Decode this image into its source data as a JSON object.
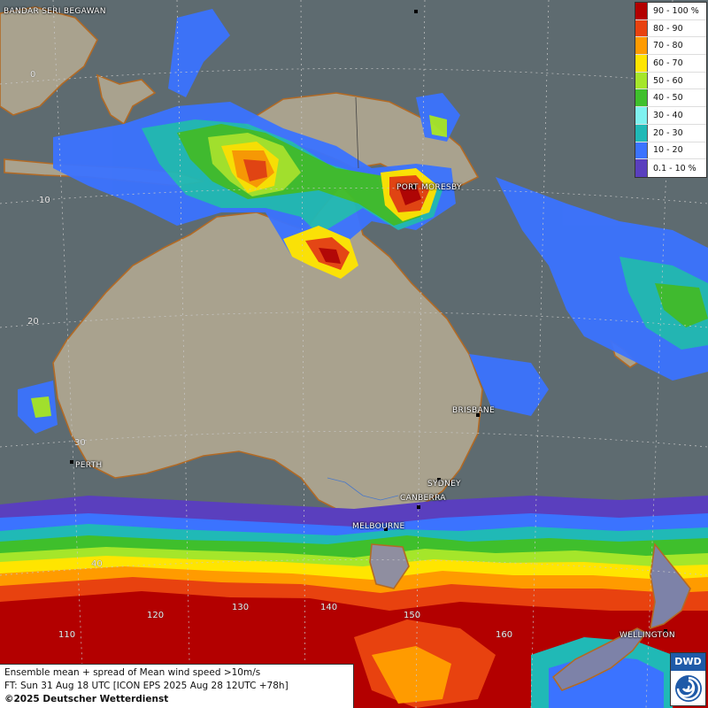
{
  "map": {
    "title": "Ensemble mean + spread of Mean wind speed >10m/s",
    "forecast_time": "FT: Sun 31 Aug 18 UTC [ICON EPS 2025 Aug 28 12UTC +78h]",
    "copyright": "©2025 Deutscher Wetterdienst",
    "logo_text": "DWD"
  },
  "legend": [
    {
      "label": "90 - 100 %",
      "color": "#b30000"
    },
    {
      "label": "80 - 90",
      "color": "#e8420f"
    },
    {
      "label": "70 - 80",
      "color": "#ff9b00"
    },
    {
      "label": "60 - 70",
      "color": "#ffe500"
    },
    {
      "label": "50 - 60",
      "color": "#a5e62a"
    },
    {
      "label": "40 - 50",
      "color": "#3fbf2c"
    },
    {
      "label": "30 - 40",
      "color": "#7ff2f0"
    },
    {
      "label": "20 - 30",
      "color": "#20b9b6"
    },
    {
      "label": "10 - 20",
      "color": "#3b73ff"
    },
    {
      "label": "0.1 - 10 %",
      "color": "#5a3fbe"
    }
  ],
  "cities": [
    {
      "name": "BANDAR SERI BEGAWAN"
    },
    {
      "name": "PORT MORESBY"
    },
    {
      "name": "BRISBANE"
    },
    {
      "name": "PERTH"
    },
    {
      "name": "SYDNEY"
    },
    {
      "name": "CANBERRA"
    },
    {
      "name": "MELBOURNE"
    },
    {
      "name": "WELLINGTON"
    }
  ],
  "grid_labels": [
    "0",
    "10",
    "20",
    "30",
    "40",
    "110",
    "120",
    "130",
    "140",
    "150",
    "160"
  ]
}
